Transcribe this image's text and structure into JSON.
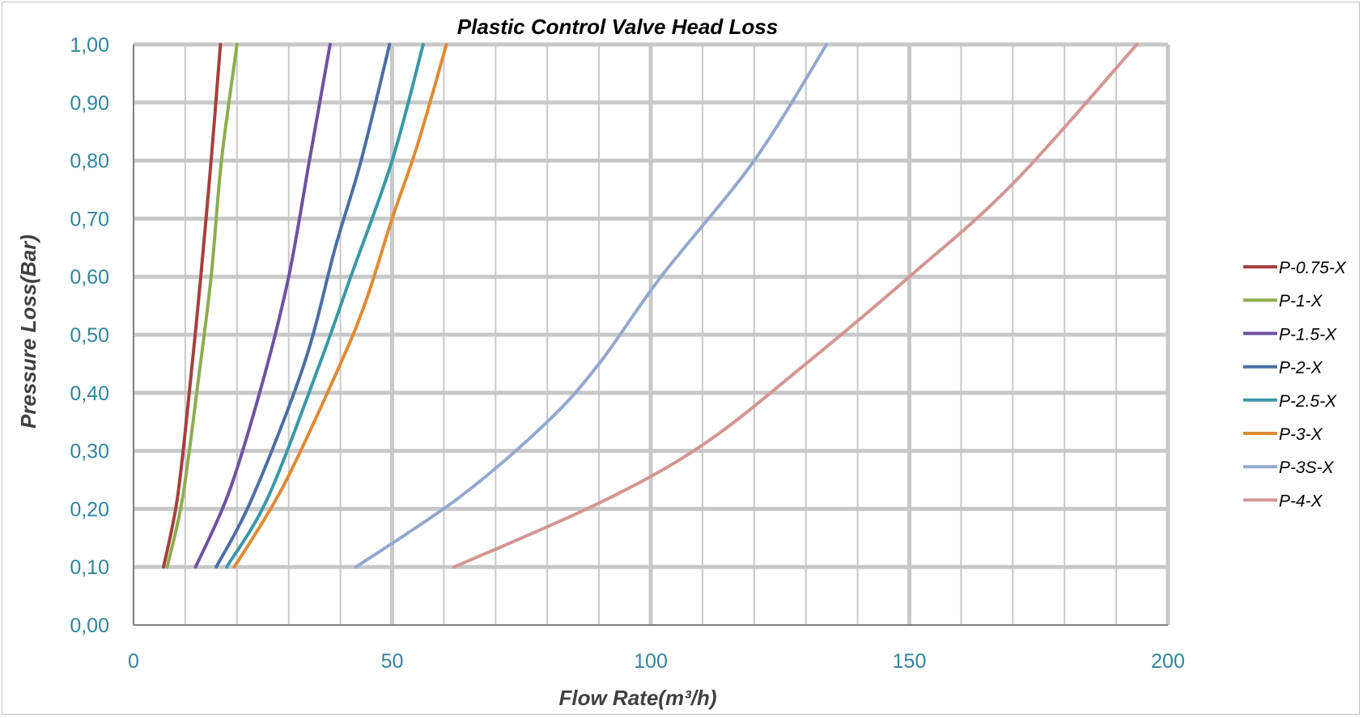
{
  "chart_data": {
    "type": "line",
    "title": "Plastic Control Valve Head Loss",
    "xlabel": "Flow Rate(m³/h)",
    "ylabel": "Pressure Loss(Bar)",
    "xlim": [
      0,
      200
    ],
    "ylim": [
      0,
      1
    ],
    "x_ticks": [
      0,
      50,
      100,
      150,
      200
    ],
    "x_tick_labels": [
      "0",
      "50",
      "100",
      "150",
      "200"
    ],
    "y_ticks": [
      0,
      0.1,
      0.2,
      0.3,
      0.4,
      0.5,
      0.6,
      0.7,
      0.8,
      0.9,
      1.0
    ],
    "y_tick_labels": [
      "0,00",
      "0,10",
      "0,20",
      "0,30",
      "0,40",
      "0,50",
      "0,60",
      "0,70",
      "0,80",
      "0,90",
      "1,00"
    ],
    "x_minor_step": 10,
    "x_major_step": 50,
    "y_grid_step": 0.1,
    "grid": true,
    "legend_position": "right",
    "series": [
      {
        "name": "P-0.75-X",
        "color": "#a5403c",
        "points": [
          [
            5.8,
            0.1
          ],
          [
            8.5,
            0.22
          ],
          [
            11,
            0.42
          ],
          [
            13,
            0.6
          ],
          [
            15,
            0.8
          ],
          [
            16.8,
            1.0
          ]
        ]
      },
      {
        "name": "P-1-X",
        "color": "#8cad4f",
        "points": [
          [
            6.5,
            0.1
          ],
          [
            9.5,
            0.22
          ],
          [
            12.5,
            0.42
          ],
          [
            15,
            0.6
          ],
          [
            17,
            0.8
          ],
          [
            20,
            1.0
          ]
        ]
      },
      {
        "name": "P-1.5-X",
        "color": "#6f51a1",
        "points": [
          [
            12,
            0.1
          ],
          [
            18.5,
            0.23
          ],
          [
            25,
            0.42
          ],
          [
            30,
            0.6
          ],
          [
            34,
            0.8
          ],
          [
            38,
            1.0
          ]
        ]
      },
      {
        "name": "P-2-X",
        "color": "#4a6fa5",
        "points": [
          [
            16,
            0.1
          ],
          [
            23,
            0.22
          ],
          [
            33,
            0.45
          ],
          [
            39,
            0.65
          ],
          [
            44,
            0.8
          ],
          [
            49.5,
            1.0
          ]
        ]
      },
      {
        "name": "P-2.5-X",
        "color": "#3a97a8",
        "points": [
          [
            18,
            0.1
          ],
          [
            26,
            0.22
          ],
          [
            36,
            0.45
          ],
          [
            42,
            0.6
          ],
          [
            50,
            0.8
          ],
          [
            56,
            1.0
          ]
        ]
      },
      {
        "name": "P-3-X",
        "color": "#e08a35",
        "points": [
          [
            19.5,
            0.1
          ],
          [
            29,
            0.24
          ],
          [
            40,
            0.45
          ],
          [
            45,
            0.56
          ],
          [
            50,
            0.7
          ],
          [
            55,
            0.83
          ],
          [
            60.5,
            1.0
          ]
        ]
      },
      {
        "name": "P-3S-X",
        "color": "#93a8cf",
        "points": [
          [
            43,
            0.1
          ],
          [
            63,
            0.22
          ],
          [
            80,
            0.35
          ],
          [
            90,
            0.45
          ],
          [
            102,
            0.6
          ],
          [
            120,
            0.8
          ],
          [
            134,
            1.0
          ]
        ]
      },
      {
        "name": "P-4-X",
        "color": "#d49593",
        "points": [
          [
            62,
            0.1
          ],
          [
            90,
            0.21
          ],
          [
            110,
            0.31
          ],
          [
            130,
            0.45
          ],
          [
            150,
            0.6
          ],
          [
            170,
            0.76
          ],
          [
            194,
            1.0
          ]
        ]
      }
    ]
  }
}
